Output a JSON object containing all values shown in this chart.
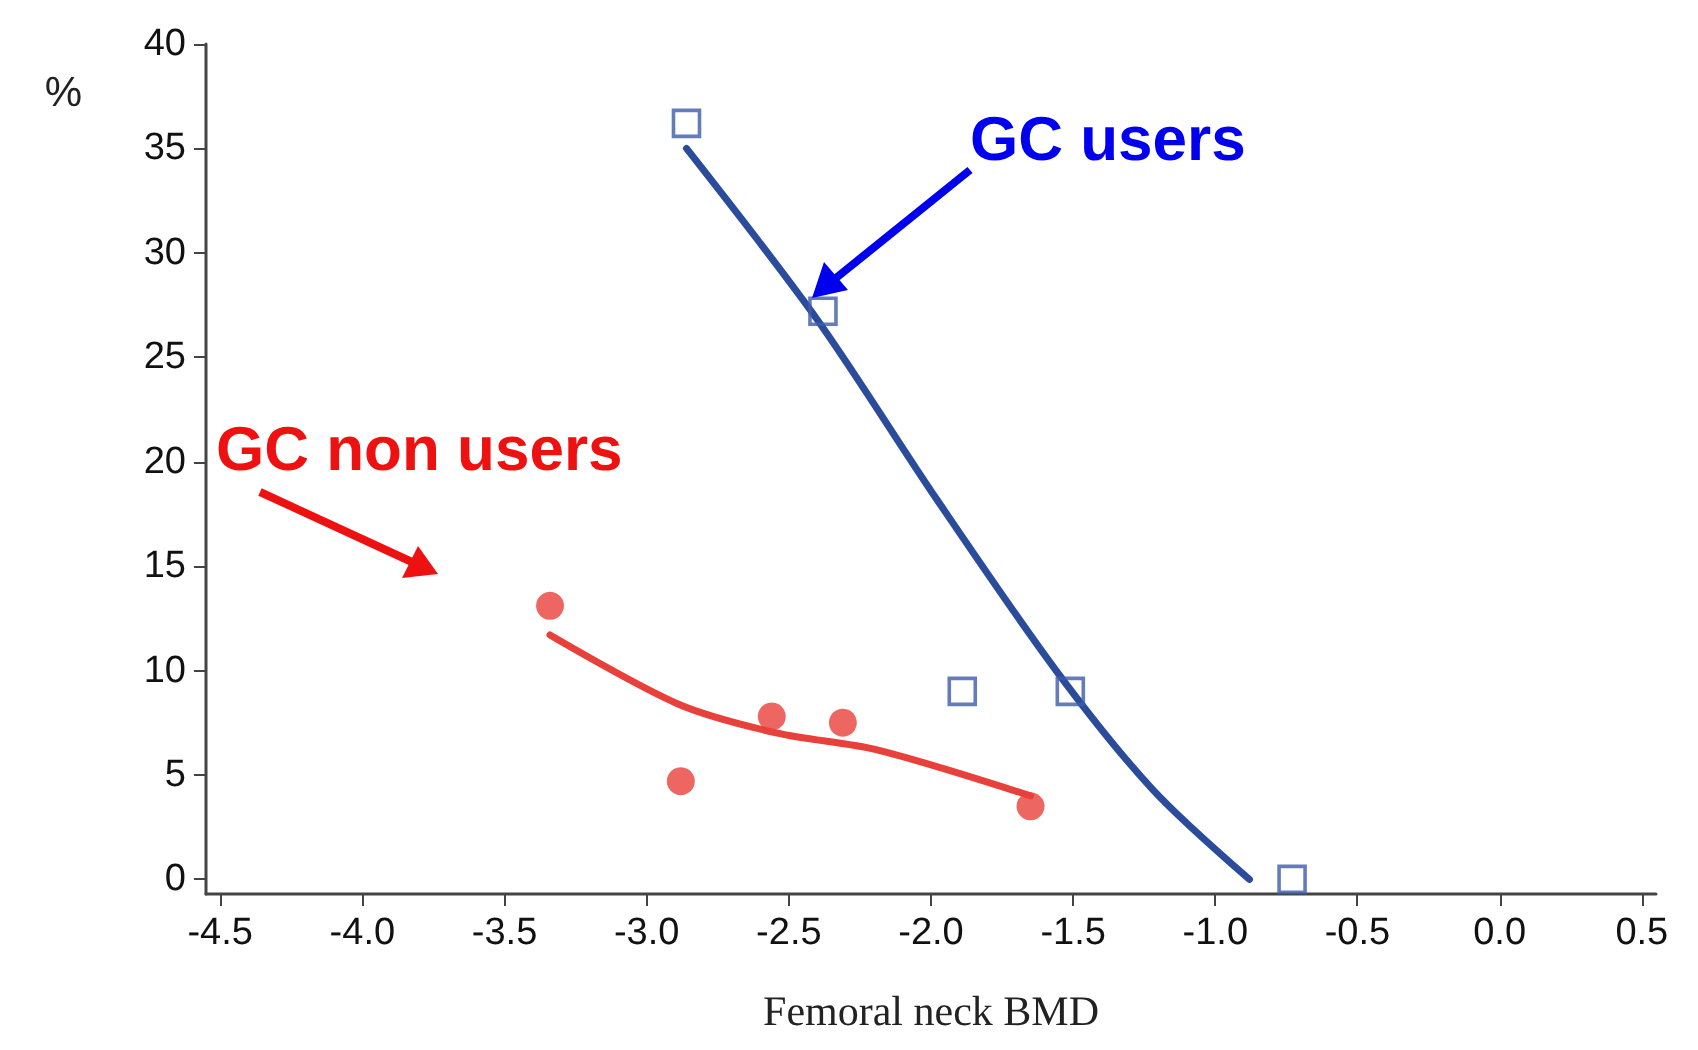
{
  "chart_data": {
    "type": "scatter",
    "xlabel": "Femoral neck BMD",
    "ylabel": "%",
    "xlim": [
      -4.55,
      0.55
    ],
    "ylim": [
      -0.7,
      40
    ],
    "xticks": [
      -4.5,
      {
        "value": -4,
        "label": "-4.0"
      },
      -3.5,
      {
        "value": -3,
        "label": "-3.0"
      },
      -2.5,
      {
        "value": -2,
        "label": "-2.0"
      },
      -1.5,
      {
        "value": -1,
        "label": "-1.0"
      },
      -0.5,
      {
        "value": 0,
        "label": "0.0"
      },
      0.5
    ],
    "yticks": [
      0,
      5,
      10,
      15,
      20,
      25,
      30,
      35,
      40
    ],
    "grid": false,
    "legend": false,
    "series": [
      {
        "name": "GC users",
        "marker": "square",
        "color": "#3f5ba9",
        "x": [
          -2.86,
          -2.38,
          -1.89,
          -1.51,
          -0.73
        ],
        "values": [
          36.2,
          27.2,
          9.0,
          9.0,
          0
        ]
      },
      {
        "type": "line",
        "marker": "none",
        "line_style": "solid",
        "color": "#2b4b9b",
        "x": [
          -2.86,
          -2.4,
          -1.98,
          -1.56,
          -1.22,
          -0.88
        ],
        "values": [
          35,
          26.8,
          18.2,
          10.0,
          4.3,
          0
        ]
      },
      {
        "name": "GC non users",
        "marker": "circle",
        "color": "#e8403a",
        "x": [
          -3.34,
          -2.88,
          -2.56,
          -2.31,
          -1.65
        ],
        "values": [
          13.1,
          4.7,
          7.8,
          7.5,
          3.5
        ]
      },
      {
        "type": "line",
        "marker": "none",
        "line_style": "solid",
        "color": "#e8403a",
        "x": [
          -3.34,
          -2.89,
          -2.54,
          -2.19,
          -1.65
        ],
        "values": [
          11.7,
          8.4,
          7.0,
          6.2,
          4.0
        ]
      }
    ]
  }
}
